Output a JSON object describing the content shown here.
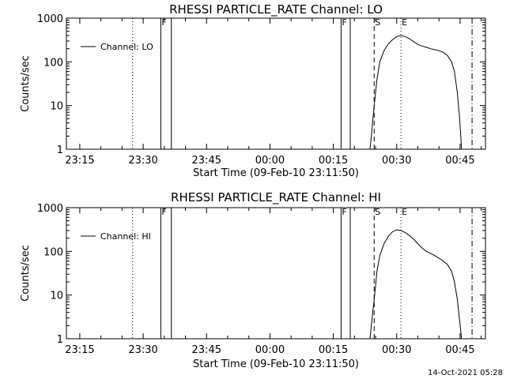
{
  "footer": {
    "timestamp": "14-Oct-2021 05:28"
  },
  "chart_data": [
    {
      "type": "line",
      "title": "RHESSI PARTICLE_RATE Channel: LO",
      "xlabel": "Start Time (09-Feb-10 23:11:50)",
      "ylabel": "Counts/sec",
      "y_scale": "log",
      "ylim": [
        1,
        1000
      ],
      "xlim": [
        "23:11:50",
        "00:51:00"
      ],
      "x_ticks": [
        "23:15",
        "23:30",
        "23:45",
        "00:00",
        "00:15",
        "00:30",
        "00:45"
      ],
      "y_ticks": [
        "1",
        "10",
        "100",
        "1000"
      ],
      "legend": {
        "position": "top-left",
        "entries": [
          "Channel: LO"
        ]
      },
      "markers": [
        {
          "time": "23:27:30",
          "style": "dotted",
          "label": ""
        },
        {
          "time": "23:34:10",
          "style": "solid",
          "label": "F"
        },
        {
          "time": "23:36:40",
          "style": "solid",
          "label": ""
        },
        {
          "time": "00:16:50",
          "style": "solid",
          "label": "F"
        },
        {
          "time": "00:19:00",
          "style": "solid",
          "label": ""
        },
        {
          "time": "00:24:40",
          "style": "dashed",
          "label": "S"
        },
        {
          "time": "00:31:00",
          "style": "dotted",
          "label": "E"
        },
        {
          "time": "00:47:50",
          "style": "dashdot",
          "label": ""
        }
      ],
      "series": [
        {
          "name": "Channel: LO",
          "x": [
            "00:23:40",
            "00:24:00",
            "00:24:40",
            "00:25:20",
            "00:26:00",
            "00:27:00",
            "00:28:00",
            "00:29:00",
            "00:30:00",
            "00:31:00",
            "00:32:00",
            "00:33:00",
            "00:34:00",
            "00:35:00",
            "00:36:00",
            "00:37:00",
            "00:38:00",
            "00:39:00",
            "00:40:00",
            "00:41:00",
            "00:42:00",
            "00:43:00",
            "00:43:40",
            "00:44:20",
            "00:44:50",
            "00:45:10",
            "00:45:20"
          ],
          "y": [
            1,
            2,
            10,
            40,
            100,
            180,
            260,
            320,
            380,
            400,
            380,
            340,
            290,
            250,
            230,
            215,
            200,
            190,
            180,
            165,
            140,
            100,
            60,
            20,
            6,
            2,
            1
          ]
        }
      ]
    },
    {
      "type": "line",
      "title": "RHESSI PARTICLE_RATE Channel: HI",
      "xlabel": "Start Time (09-Feb-10 23:11:50)",
      "ylabel": "Counts/sec",
      "y_scale": "log",
      "ylim": [
        1,
        1000
      ],
      "xlim": [
        "23:11:50",
        "00:51:00"
      ],
      "x_ticks": [
        "23:15",
        "23:30",
        "23:45",
        "00:00",
        "00:15",
        "00:30",
        "00:45"
      ],
      "y_ticks": [
        "1",
        "10",
        "100",
        "1000"
      ],
      "legend": {
        "position": "top-left",
        "entries": [
          "Channel: HI"
        ]
      },
      "markers": [
        {
          "time": "23:27:30",
          "style": "dotted",
          "label": ""
        },
        {
          "time": "23:34:10",
          "style": "solid",
          "label": "F"
        },
        {
          "time": "23:36:40",
          "style": "solid",
          "label": ""
        },
        {
          "time": "00:16:50",
          "style": "solid",
          "label": "F"
        },
        {
          "time": "00:19:00",
          "style": "solid",
          "label": ""
        },
        {
          "time": "00:24:40",
          "style": "dashed",
          "label": "S"
        },
        {
          "time": "00:31:00",
          "style": "dotted",
          "label": "E"
        },
        {
          "time": "00:47:50",
          "style": "dashdot",
          "label": ""
        }
      ],
      "series": [
        {
          "name": "Channel: HI",
          "x": [
            "00:23:40",
            "00:24:00",
            "00:24:40",
            "00:25:20",
            "00:26:00",
            "00:27:00",
            "00:28:00",
            "00:29:00",
            "00:30:00",
            "00:31:00",
            "00:32:00",
            "00:33:00",
            "00:34:00",
            "00:35:00",
            "00:36:00",
            "00:37:00",
            "00:38:00",
            "00:39:00",
            "00:40:00",
            "00:41:00",
            "00:42:00",
            "00:43:00",
            "00:43:40",
            "00:44:20",
            "00:44:50",
            "00:45:10",
            "00:45:20"
          ],
          "y": [
            1,
            2,
            8,
            35,
            80,
            150,
            220,
            280,
            310,
            300,
            270,
            230,
            190,
            150,
            120,
            100,
            90,
            80,
            70,
            60,
            50,
            35,
            20,
            8,
            3,
            1.5,
            1
          ]
        }
      ]
    }
  ]
}
